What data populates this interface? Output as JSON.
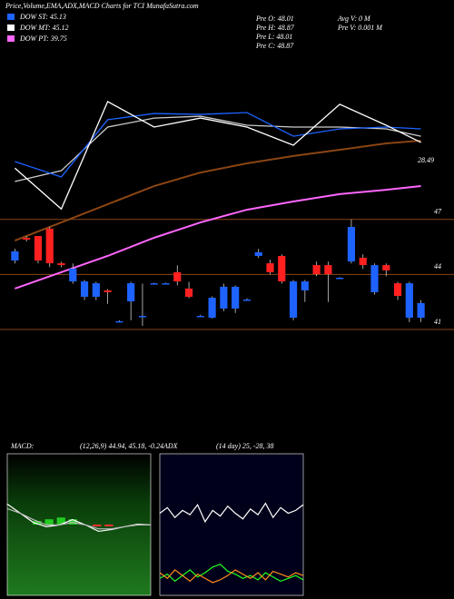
{
  "chart_data": [
    {
      "type": "candlestick",
      "title": "Price,Volume,EMA,ADX,MACD Charts for TCI MunafaSutra.com",
      "legend": [
        {
          "label": "DOW ST: 45.13",
          "color": "#1e63ff"
        },
        {
          "label": "DOW MT: 45.12",
          "color": "#ffffff"
        },
        {
          "label": "DOW PT: 39.75",
          "color": "#ff66ff"
        }
      ],
      "info": [
        "Pre  O: 48.01",
        "Pre  H: 48.87",
        "Pre  L: 48.01",
        "Pre  C: 48.87",
        "Avg  V: 0  M",
        "Pre  V: 0.001 M"
      ],
      "last_label": "28.49",
      "open": [
        44.76,
        46.0,
        46.1,
        46.5,
        44.61,
        43.62,
        42.78,
        42.78,
        43.13,
        41.45,
        42.53,
        41.74,
        43.52,
        43.52,
        44.12,
        43.23,
        41.74,
        41.64,
        42.14,
        42.14,
        42.63,
        45.01,
        44.61,
        45.01,
        41.64,
        43.13,
        44.51,
        44.51,
        43.82,
        44.71,
        44.91,
        43.03,
        44.51,
        43.52,
        41.64,
        41.64
      ],
      "high": [
        45.4,
        46.1,
        46.1,
        46.6,
        44.7,
        44.6,
        43.7,
        43.6,
        43.2,
        41.5,
        43.6,
        43.5,
        43.55,
        43.55,
        44.5,
        43.6,
        41.8,
        42.8,
        43.5,
        43.4,
        42.7,
        45.4,
        44.8,
        45.1,
        43.7,
        43.7,
        44.7,
        44.7,
        43.85,
        47.0,
        45.1,
        44.6,
        44.6,
        43.6,
        43.6,
        42.6
      ],
      "low": [
        44.6,
        45.8,
        44.6,
        44.4,
        44.4,
        43.5,
        42.6,
        42.6,
        42.4,
        41.4,
        41.5,
        41.2,
        43.5,
        43.5,
        43.4,
        42.7,
        41.7,
        41.6,
        42.0,
        41.9,
        42.6,
        44.9,
        44.0,
        43.5,
        41.5,
        42.5,
        43.9,
        42.5,
        43.8,
        44.6,
        44.3,
        42.9,
        43.9,
        42.6,
        41.4,
        41.4
      ],
      "close": [
        45.26,
        45.9,
        44.76,
        44.61,
        44.51,
        44.32,
        43.62,
        43.52,
        43.03,
        41.45,
        43.52,
        41.74,
        43.52,
        43.52,
        43.62,
        42.78,
        41.74,
        42.73,
        43.33,
        43.33,
        42.63,
        45.21,
        44.12,
        43.62,
        43.62,
        43.62,
        44.02,
        44.02,
        43.82,
        46.59,
        44.51,
        44.51,
        44.22,
        42.83,
        43.52,
        42.44
      ],
      "up_color": "#1e63ff",
      "down_color": "#ff2020",
      "line_x": [
        0,
        4,
        8,
        12,
        16,
        20,
        24,
        28,
        32,
        35
      ],
      "series": [
        {
          "color": "#ff66ff",
          "values": [
            43.23,
            44.12,
            45.01,
            46.0,
            46.84,
            47.53,
            47.98,
            48.38,
            48.62,
            48.82
          ]
        },
        {
          "color": "#8b4513",
          "values": [
            45.85,
            46.84,
            47.83,
            48.82,
            49.56,
            50.06,
            50.46,
            50.8,
            51.15,
            51.3
          ]
        },
        {
          "color": "#cccccc",
          "values": [
            49.07,
            49.66,
            52.04,
            52.53,
            52.63,
            52.14,
            52.04,
            52.04,
            51.94,
            51.54
          ]
        },
        {
          "color": "#1e63ff",
          "values": [
            50.16,
            49.32,
            52.44,
            52.78,
            52.73,
            52.83,
            51.54,
            51.94,
            52.04,
            51.94
          ]
        },
        {
          "color": "#ffffff",
          "values": [
            49.8,
            47.57,
            53.43,
            52.04,
            52.53,
            52.04,
            51.05,
            53.28,
            52.14,
            51.2
          ]
        }
      ],
      "ylim": [
        41,
        56
      ],
      "yticks": [
        47,
        44,
        41
      ],
      "grid": true,
      "grid_color": "#8b4513"
    },
    {
      "type": "line",
      "title": "MACD:",
      "subtitle": "(12,26,9) 44.94, 45.18, -0.24",
      "ylim": [
        -2,
        2
      ],
      "series": [
        {
          "color": "#ffffff",
          "values": [
            0.58,
            0.32,
            0.06,
            -0.06,
            -0.01,
            0.14,
            -0.01,
            -0.19,
            -0.14,
            -0.06,
            0.01,
            -0.01
          ]
        },
        {
          "color": "#bbbbbb",
          "values": [
            0.45,
            0.32,
            0.14,
            -0.01,
            -0.01,
            0.06,
            -0.01,
            -0.12,
            -0.12,
            -0.06,
            -0.01,
            -0.01
          ]
        }
      ],
      "bars": [
        0,
        0,
        0.1,
        0.15,
        0.2,
        0.15,
        0,
        -0.05,
        -0.05,
        0,
        0,
        0
      ],
      "bar_up_color": "#22cc22",
      "bar_down_color": "#ff3030"
    },
    {
      "type": "line",
      "title": "ADX",
      "subtitle": "(14 day) 25, -28, 38",
      "ylim": [
        0,
        100
      ],
      "series": [
        {
          "color": "#ffffff",
          "values": [
            58,
            62,
            55,
            60,
            57,
            64,
            52,
            60,
            56,
            63,
            58,
            54,
            61,
            57,
            65,
            55,
            62,
            58,
            60,
            64
          ]
        },
        {
          "color": "#22ff22",
          "values": [
            12,
            15,
            10,
            14,
            18,
            13,
            16,
            20,
            22,
            17,
            15,
            12,
            14,
            11,
            16,
            13,
            10,
            12,
            14,
            11
          ]
        },
        {
          "color": "#ff8c1a",
          "values": [
            16,
            12,
            18,
            14,
            10,
            15,
            12,
            9,
            11,
            14,
            18,
            15,
            12,
            16,
            11,
            17,
            15,
            13,
            16,
            14
          ]
        }
      ]
    }
  ]
}
